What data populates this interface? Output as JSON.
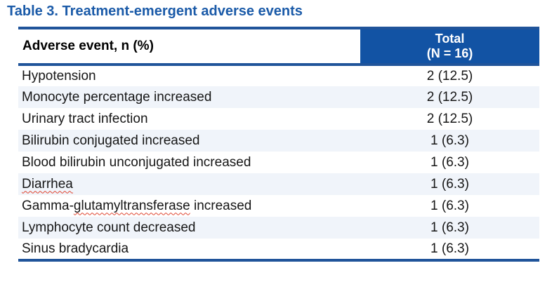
{
  "title": "Table 3. Treatment-emergent adverse events",
  "table": {
    "header": {
      "left": "Adverse event, n (%)",
      "right_line1": "Total",
      "right_line2": "(N = 16)"
    },
    "rows": [
      {
        "event": "Hypotension",
        "value": "2 (12.5)"
      },
      {
        "event": "Monocyte percentage increased",
        "value": "2 (12.5)"
      },
      {
        "event": "Urinary tract infection",
        "value": "2 (12.5)"
      },
      {
        "event": "Bilirubin conjugated increased",
        "value": "1 (6.3)"
      },
      {
        "event": "Blood bilirubin unconjugated increased",
        "value": "1 (6.3)"
      },
      {
        "event": "Diarrhea",
        "value": "1 (6.3)",
        "spellcheck_underline": "Diarrhea"
      },
      {
        "event": "Gamma-glutamyltransferase increased",
        "value": "1 (6.3)",
        "spellcheck_underline": "glutamyltransferase"
      },
      {
        "event": "Lymphocyte count decreased",
        "value": "1 (6.3)"
      },
      {
        "event": "Sinus bradycardia",
        "value": "1 (6.3)"
      }
    ]
  },
  "colors": {
    "title_blue": "#1a5aa8",
    "line_blue": "#20549a",
    "header_fill_blue": "#1253a4",
    "row_stripe": "#f0f4fa",
    "spellcheck_red": "#e0432f"
  }
}
